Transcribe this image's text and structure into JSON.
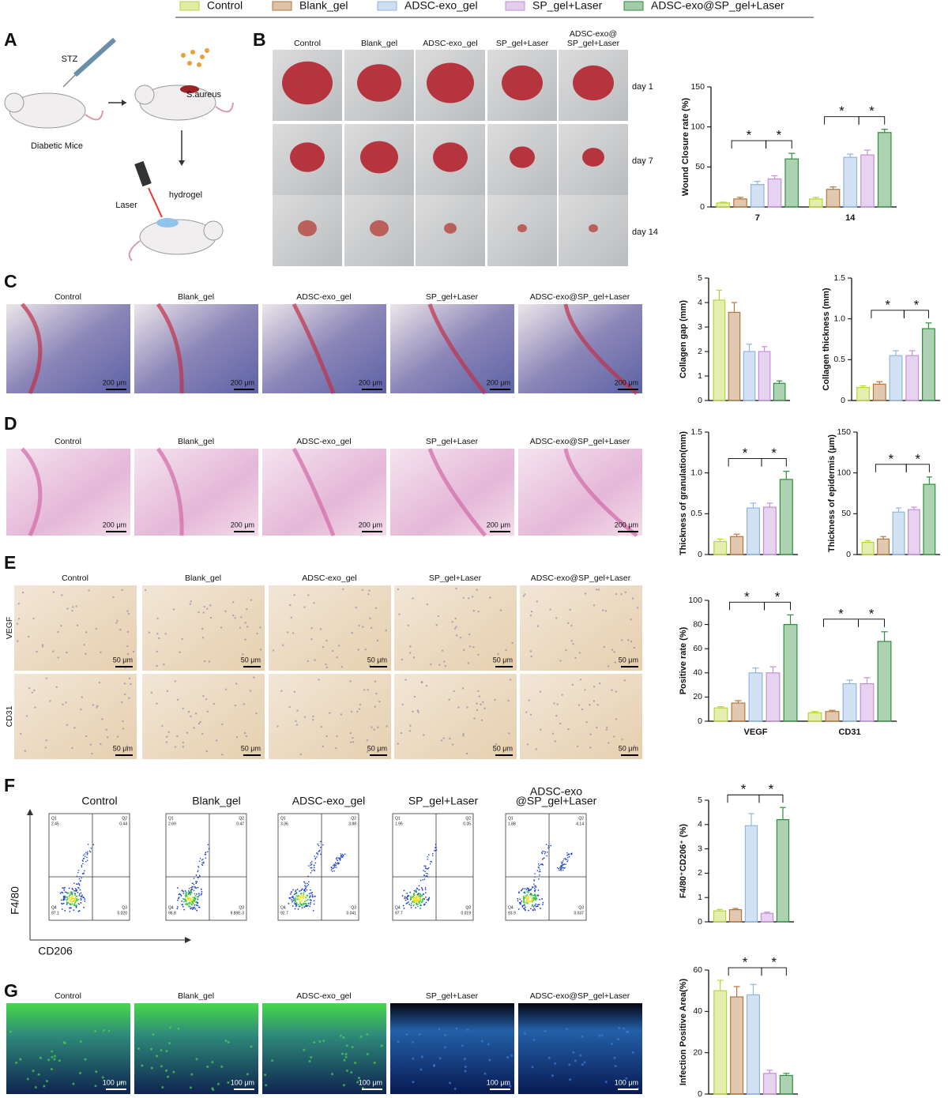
{
  "panel_labels": [
    "A",
    "B",
    "C",
    "D",
    "E",
    "F",
    "G"
  ],
  "schematic": {
    "stz": "STZ",
    "bacteria": "S.aureus",
    "mice": "Diabetic Mice",
    "laser": "Laser",
    "hydrogel": "hydrogel"
  },
  "wound_photos": {
    "columns": [
      "Control",
      "Blank_gel",
      "ADSC-exo_gel",
      "SP_gel+Laser",
      [
        "ADSC-exo@",
        "SP_gel+Laser"
      ]
    ],
    "rows": [
      "day 1",
      "day 7",
      "day 14"
    ]
  },
  "masson": {
    "columns": [
      "Control",
      "Blank_gel",
      "ADSC-exo_gel",
      "SP_gel+Laser",
      "ADSC-exo@SP_gel+Laser"
    ],
    "scale_bars": [
      "200 μm",
      "200 μm",
      "200 μm",
      "200 μm",
      "200 μm"
    ]
  },
  "he": {
    "columns": [
      "Control",
      "Blank_gel",
      "ADSC-exo_gel",
      "SP_gel+Laser",
      "ADSC-exo@SP_gel+Laser"
    ],
    "scale_bars": [
      "200 μm",
      "200 μm",
      "200 μm",
      "200 μm",
      "200 μm"
    ]
  },
  "ihc": {
    "columns": [
      "Control",
      "Blank_gel",
      "ADSC-exo_gel",
      "SP_gel+Laser",
      "ADSC-exo@SP_gel+Laser"
    ],
    "rows": [
      "VEGF",
      "CD31"
    ],
    "scale_bars": [
      [
        "50 μm",
        "50 μm",
        "50 μm",
        "50 μm",
        "50 μm"
      ],
      [
        "50 μm",
        "50 μm",
        "50 μm",
        "50 μm",
        "50 μm"
      ]
    ]
  },
  "flow": {
    "columns": [
      "Control",
      "Blank_gel",
      "ADSC-exo_gel",
      "SP_gel+Laser",
      [
        "ADSC-exo",
        "@SP_gel+Laser"
      ]
    ],
    "y_label": "F4/80",
    "x_label": "CD206",
    "plots": [
      {
        "gates": [
          "Q1",
          "Q2",
          "Q3",
          "Q4"
        ],
        "values": [
          "2.45",
          "0.44",
          "0.020",
          "97.1"
        ]
      },
      {
        "gates": [
          "Q1",
          "Q2",
          "Q3",
          "Q4"
        ],
        "values": [
          "2.69",
          "0.47",
          "9.89E-3",
          "96.8"
        ]
      },
      {
        "gates": [
          "Q1",
          "Q2",
          "Q3",
          "Q4"
        ],
        "values": [
          "3.36",
          "3.88",
          "0.041",
          "92.7"
        ]
      },
      {
        "gates": [
          "Q1",
          "Q2",
          "Q3",
          "Q4"
        ],
        "values": [
          "1.95",
          "0.35",
          "0.019",
          "97.7"
        ]
      },
      {
        "gates": [
          "Q1",
          "Q2",
          "Q3",
          "Q4"
        ],
        "values": [
          "1.88",
          "4.14",
          "0.037",
          "93.9"
        ]
      }
    ]
  },
  "fluorescence": {
    "columns": [
      "Control",
      "Blank_gel",
      "ADSC-exo_gel",
      "SP_gel+Laser",
      "ADSC-exo@SP_gel+Laser"
    ],
    "scale_bars": [
      "100 μm",
      "100 μm",
      "100 μm",
      "100 μm",
      "100 μm"
    ]
  },
  "chart_data": [
    {
      "type": "bar",
      "ylabel": "Wound Closure rate (%)",
      "categories": [
        "7",
        "14"
      ],
      "series": [
        {
          "name": "Control",
          "color": "#b9d437",
          "values": [
            5,
            10
          ],
          "errors": [
            1,
            2
          ]
        },
        {
          "name": "Blank_gel",
          "color": "#b5763c",
          "values": [
            10,
            22
          ],
          "errors": [
            2,
            3
          ]
        },
        {
          "name": "ADSC-exo_gel",
          "color": "#8fb6e0",
          "values": [
            28,
            62
          ],
          "errors": [
            4,
            4
          ]
        },
        {
          "name": "SP_gel+Laser",
          "color": "#c48fd8",
          "values": [
            35,
            65
          ],
          "errors": [
            4,
            6
          ]
        },
        {
          "name": "ADSC-exo@SP_gel+Laser",
          "color": "#2f8f3c",
          "values": [
            60,
            93
          ],
          "errors": [
            7,
            4
          ]
        }
      ],
      "ylim": [
        0,
        150
      ],
      "yticks": [
        0,
        50,
        100,
        150
      ],
      "stars": [
        "*",
        "*",
        "*",
        "*"
      ]
    },
    {
      "type": "bar",
      "ylabel": "Collagen gap (mm)",
      "categories": [
        null
      ],
      "series": [
        {
          "color": "#b9d437",
          "values": [
            4.1
          ],
          "errors": [
            0.4
          ]
        },
        {
          "color": "#b5763c",
          "values": [
            3.6
          ],
          "errors": [
            0.4
          ]
        },
        {
          "color": "#8fb6e0",
          "values": [
            2.0
          ],
          "errors": [
            0.3
          ]
        },
        {
          "color": "#c48fd8",
          "values": [
            2.0
          ],
          "errors": [
            0.2
          ]
        },
        {
          "color": "#2f8f3c",
          "values": [
            0.7
          ],
          "errors": [
            0.1
          ]
        }
      ],
      "ylim": [
        0,
        5
      ],
      "yticks": [
        0,
        1,
        2,
        3,
        4,
        5
      ]
    },
    {
      "type": "bar",
      "ylabel": "Collagen thickness (mm)",
      "categories": [
        null
      ],
      "series": [
        {
          "color": "#b9d437",
          "values": [
            0.16
          ],
          "errors": [
            0.02
          ]
        },
        {
          "color": "#b5763c",
          "values": [
            0.2
          ],
          "errors": [
            0.03
          ]
        },
        {
          "color": "#8fb6e0",
          "values": [
            0.55
          ],
          "errors": [
            0.06
          ]
        },
        {
          "color": "#c48fd8",
          "values": [
            0.55
          ],
          "errors": [
            0.06
          ]
        },
        {
          "color": "#2f8f3c",
          "values": [
            0.88
          ],
          "errors": [
            0.07
          ]
        }
      ],
      "ylim": [
        0,
        1.5
      ],
      "yticks": [
        0,
        0.5,
        {
          "value": 1,
          "label": "1.0"
        },
        1.5
      ],
      "stars": [
        "*",
        "*"
      ]
    },
    {
      "type": "bar",
      "ylabel": "Thickness of granulation(mm)",
      "categories": [
        null
      ],
      "series": [
        {
          "color": "#b9d437",
          "values": [
            0.16
          ],
          "errors": [
            0.03
          ]
        },
        {
          "color": "#b5763c",
          "values": [
            0.22
          ],
          "errors": [
            0.03
          ]
        },
        {
          "color": "#8fb6e0",
          "values": [
            0.57
          ],
          "errors": [
            0.06
          ]
        },
        {
          "color": "#c48fd8",
          "values": [
            0.58
          ],
          "errors": [
            0.05
          ]
        },
        {
          "color": "#2f8f3c",
          "values": [
            0.92
          ],
          "errors": [
            0.1
          ]
        }
      ],
      "ylim": [
        0,
        1.5
      ],
      "yticks": [
        0,
        0.5,
        {
          "value": 1,
          "label": "1.0"
        },
        1.5
      ],
      "stars": [
        "*",
        "*"
      ]
    },
    {
      "type": "bar",
      "ylabel": "Thickness of epidermis (μm)",
      "categories": [
        null
      ],
      "series": [
        {
          "color": "#b9d437",
          "values": [
            15
          ],
          "errors": [
            2
          ]
        },
        {
          "color": "#b5763c",
          "values": [
            19
          ],
          "errors": [
            3
          ]
        },
        {
          "color": "#8fb6e0",
          "values": [
            52
          ],
          "errors": [
            5
          ]
        },
        {
          "color": "#c48fd8",
          "values": [
            55
          ],
          "errors": [
            3
          ]
        },
        {
          "color": "#2f8f3c",
          "values": [
            86
          ],
          "errors": [
            9
          ]
        }
      ],
      "ylim": [
        0,
        150
      ],
      "yticks": [
        0,
        50,
        100,
        150
      ],
      "stars": [
        "*",
        "*"
      ]
    },
    {
      "type": "bar",
      "ylabel": "Positive rate (%)",
      "categories": [
        "VEGF",
        "CD31"
      ],
      "series": [
        {
          "color": "#b9d437",
          "values": [
            11,
            7
          ],
          "errors": [
            1,
            1
          ]
        },
        {
          "color": "#b5763c",
          "values": [
            15,
            8
          ],
          "errors": [
            2,
            1
          ]
        },
        {
          "color": "#8fb6e0",
          "values": [
            40,
            31
          ],
          "errors": [
            4,
            3
          ]
        },
        {
          "color": "#c48fd8",
          "values": [
            40,
            31
          ],
          "errors": [
            5,
            5
          ]
        },
        {
          "color": "#2f8f3c",
          "values": [
            80,
            66
          ],
          "errors": [
            8,
            8
          ]
        }
      ],
      "ylim": [
        0,
        100
      ],
      "yticks": [
        0,
        20,
        40,
        60,
        80,
        100
      ],
      "stars": [
        "*",
        "*",
        "*",
        "*"
      ]
    },
    {
      "type": "bar",
      "ylabel": "F4/80⁺CD206⁺ (%)",
      "categories": [
        null
      ],
      "series": [
        {
          "color": "#b9d437",
          "values": [
            0.45
          ],
          "errors": [
            0.06
          ]
        },
        {
          "color": "#b5763c",
          "values": [
            0.5
          ],
          "errors": [
            0.05
          ]
        },
        {
          "color": "#8fb6e0",
          "values": [
            3.95
          ],
          "errors": [
            0.5
          ]
        },
        {
          "color": "#c48fd8",
          "values": [
            0.35
          ],
          "errors": [
            0.05
          ]
        },
        {
          "color": "#2f8f3c",
          "values": [
            4.2
          ],
          "errors": [
            0.5
          ]
        }
      ],
      "ylim": [
        0,
        5
      ],
      "yticks": [
        0,
        1,
        2,
        3,
        4,
        5
      ],
      "stars": [
        "*",
        "*"
      ]
    },
    {
      "type": "bar",
      "ylabel": "Infection Positive Area(%)",
      "categories": [
        null
      ],
      "series": [
        {
          "color": "#b9d437",
          "values": [
            50
          ],
          "errors": [
            5
          ]
        },
        {
          "color": "#b5763c",
          "values": [
            47
          ],
          "errors": [
            5
          ]
        },
        {
          "color": "#8fb6e0",
          "values": [
            48
          ],
          "errors": [
            5
          ]
        },
        {
          "color": "#c48fd8",
          "values": [
            10
          ],
          "errors": [
            1.5
          ]
        },
        {
          "color": "#2f8f3c",
          "values": [
            9
          ],
          "errors": [
            1
          ]
        }
      ],
      "ylim": [
        0,
        60
      ],
      "yticks": [
        0,
        20,
        40,
        60
      ],
      "stars": [
        "*",
        "*"
      ]
    }
  ]
}
